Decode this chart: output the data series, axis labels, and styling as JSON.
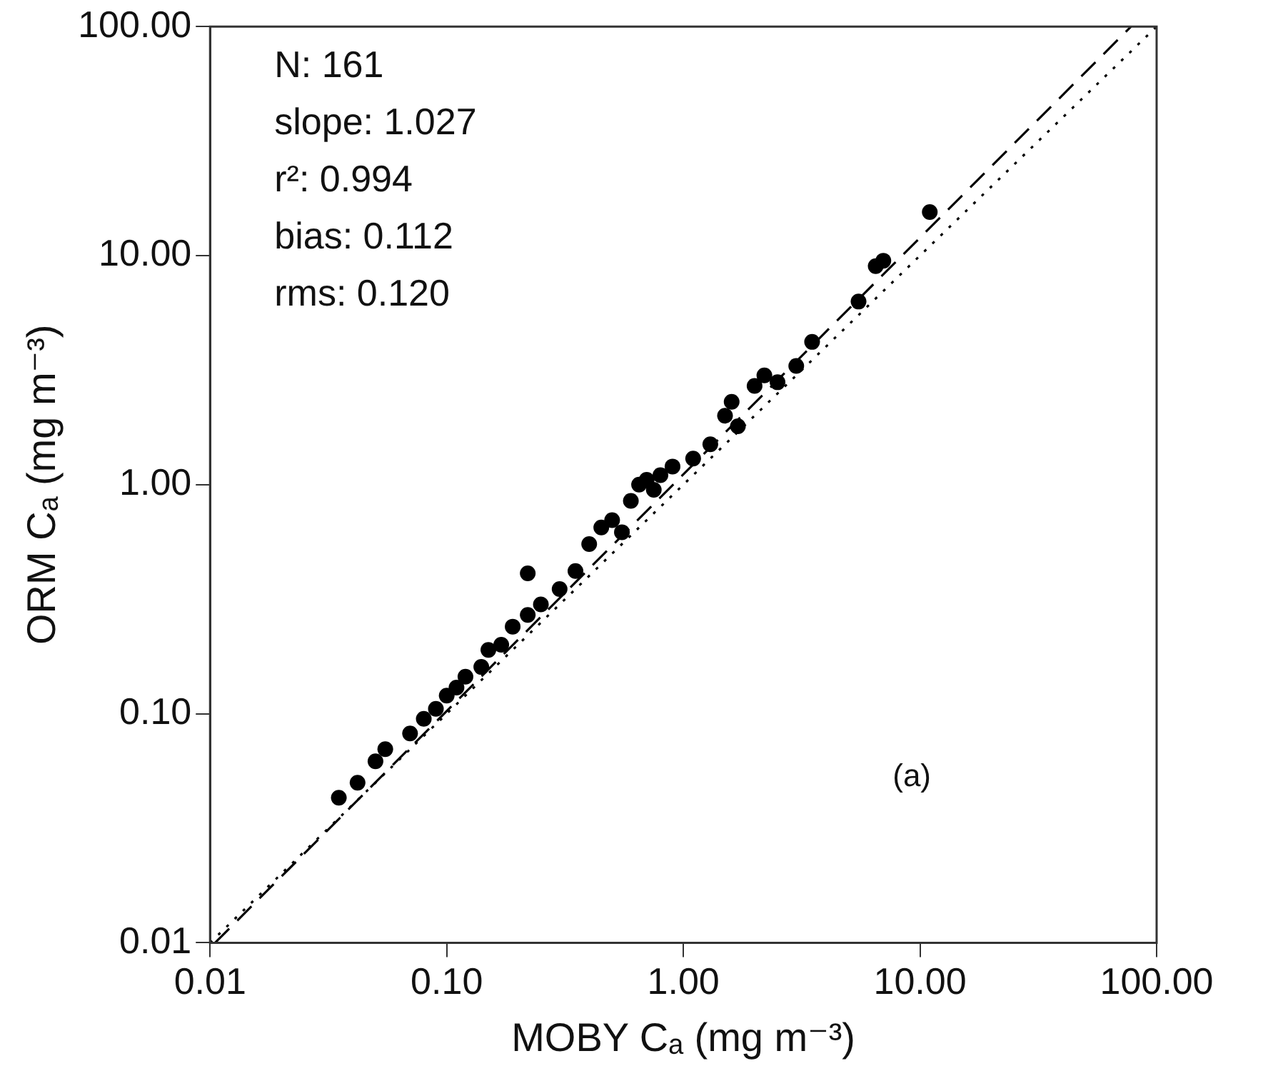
{
  "chart_data": {
    "type": "scatter",
    "xlabel": "MOBY Cₐ (mg m⁻³)",
    "ylabel": "ORM Cₐ (mg m⁻³)",
    "log": "xy",
    "grid": false,
    "legend": false,
    "marker": "circle",
    "xlim": [
      0.01,
      100
    ],
    "ylim": [
      0.01,
      100
    ],
    "xticks": [
      0.01,
      {
        "value": 0.1,
        "label": "0.10"
      },
      {
        "value": 1,
        "label": "1.00"
      },
      {
        "value": 10,
        "label": "10.00"
      },
      {
        "value": 100,
        "label": "100.00"
      }
    ],
    "yticks": [
      0.01,
      {
        "value": 0.1,
        "label": "0.10"
      },
      {
        "value": 1,
        "label": "1.00"
      },
      {
        "value": 10,
        "label": "10.00"
      },
      {
        "value": 100,
        "label": "100.00"
      }
    ],
    "series": [
      {
        "color": "#000000",
        "x": [
          0.035,
          0.042,
          0.05,
          0.055,
          0.07,
          0.08,
          0.09,
          0.1,
          0.11,
          0.12,
          0.14,
          0.15,
          0.17,
          0.19,
          0.22,
          0.22,
          0.25,
          0.3,
          0.35,
          0.4,
          0.45,
          0.5,
          0.55,
          0.6,
          0.65,
          0.7,
          0.75,
          0.8,
          0.9,
          1.1,
          1.3,
          1.5,
          1.6,
          1.7,
          2.0,
          2.2,
          2.5,
          3.0,
          3.5,
          5.5,
          6.5,
          7,
          11
        ],
        "values": [
          0.043,
          0.05,
          0.062,
          0.07,
          0.082,
          0.095,
          0.105,
          0.12,
          0.13,
          0.145,
          0.16,
          0.19,
          0.2,
          0.24,
          0.41,
          0.27,
          0.3,
          0.35,
          0.42,
          0.55,
          0.65,
          0.7,
          0.62,
          0.85,
          1.0,
          1.05,
          0.95,
          1.1,
          1.2,
          1.3,
          1.5,
          2.0,
          2.3,
          1.8,
          2.7,
          3.0,
          2.8,
          3.3,
          4.2,
          6.3,
          9.0,
          9.5,
          15.5
        ]
      },
      {
        "type": "line",
        "color": "#000000",
        "line_style": "dashed",
        "marker": "none",
        "x": [
          0.0105,
          78
        ],
        "values": [
          0.01,
          100
        ]
      },
      {
        "type": "line",
        "color": "#000000",
        "line_style": "dotted",
        "marker": "none",
        "x": [
          0.01,
          100
        ],
        "values": [
          0.01,
          100
        ]
      }
    ],
    "annotations": [
      "N: 161",
      "slope: 1.027",
      "r²: 0.994",
      "bias: 0.112",
      "rms: 0.120",
      "(a)"
    ]
  }
}
